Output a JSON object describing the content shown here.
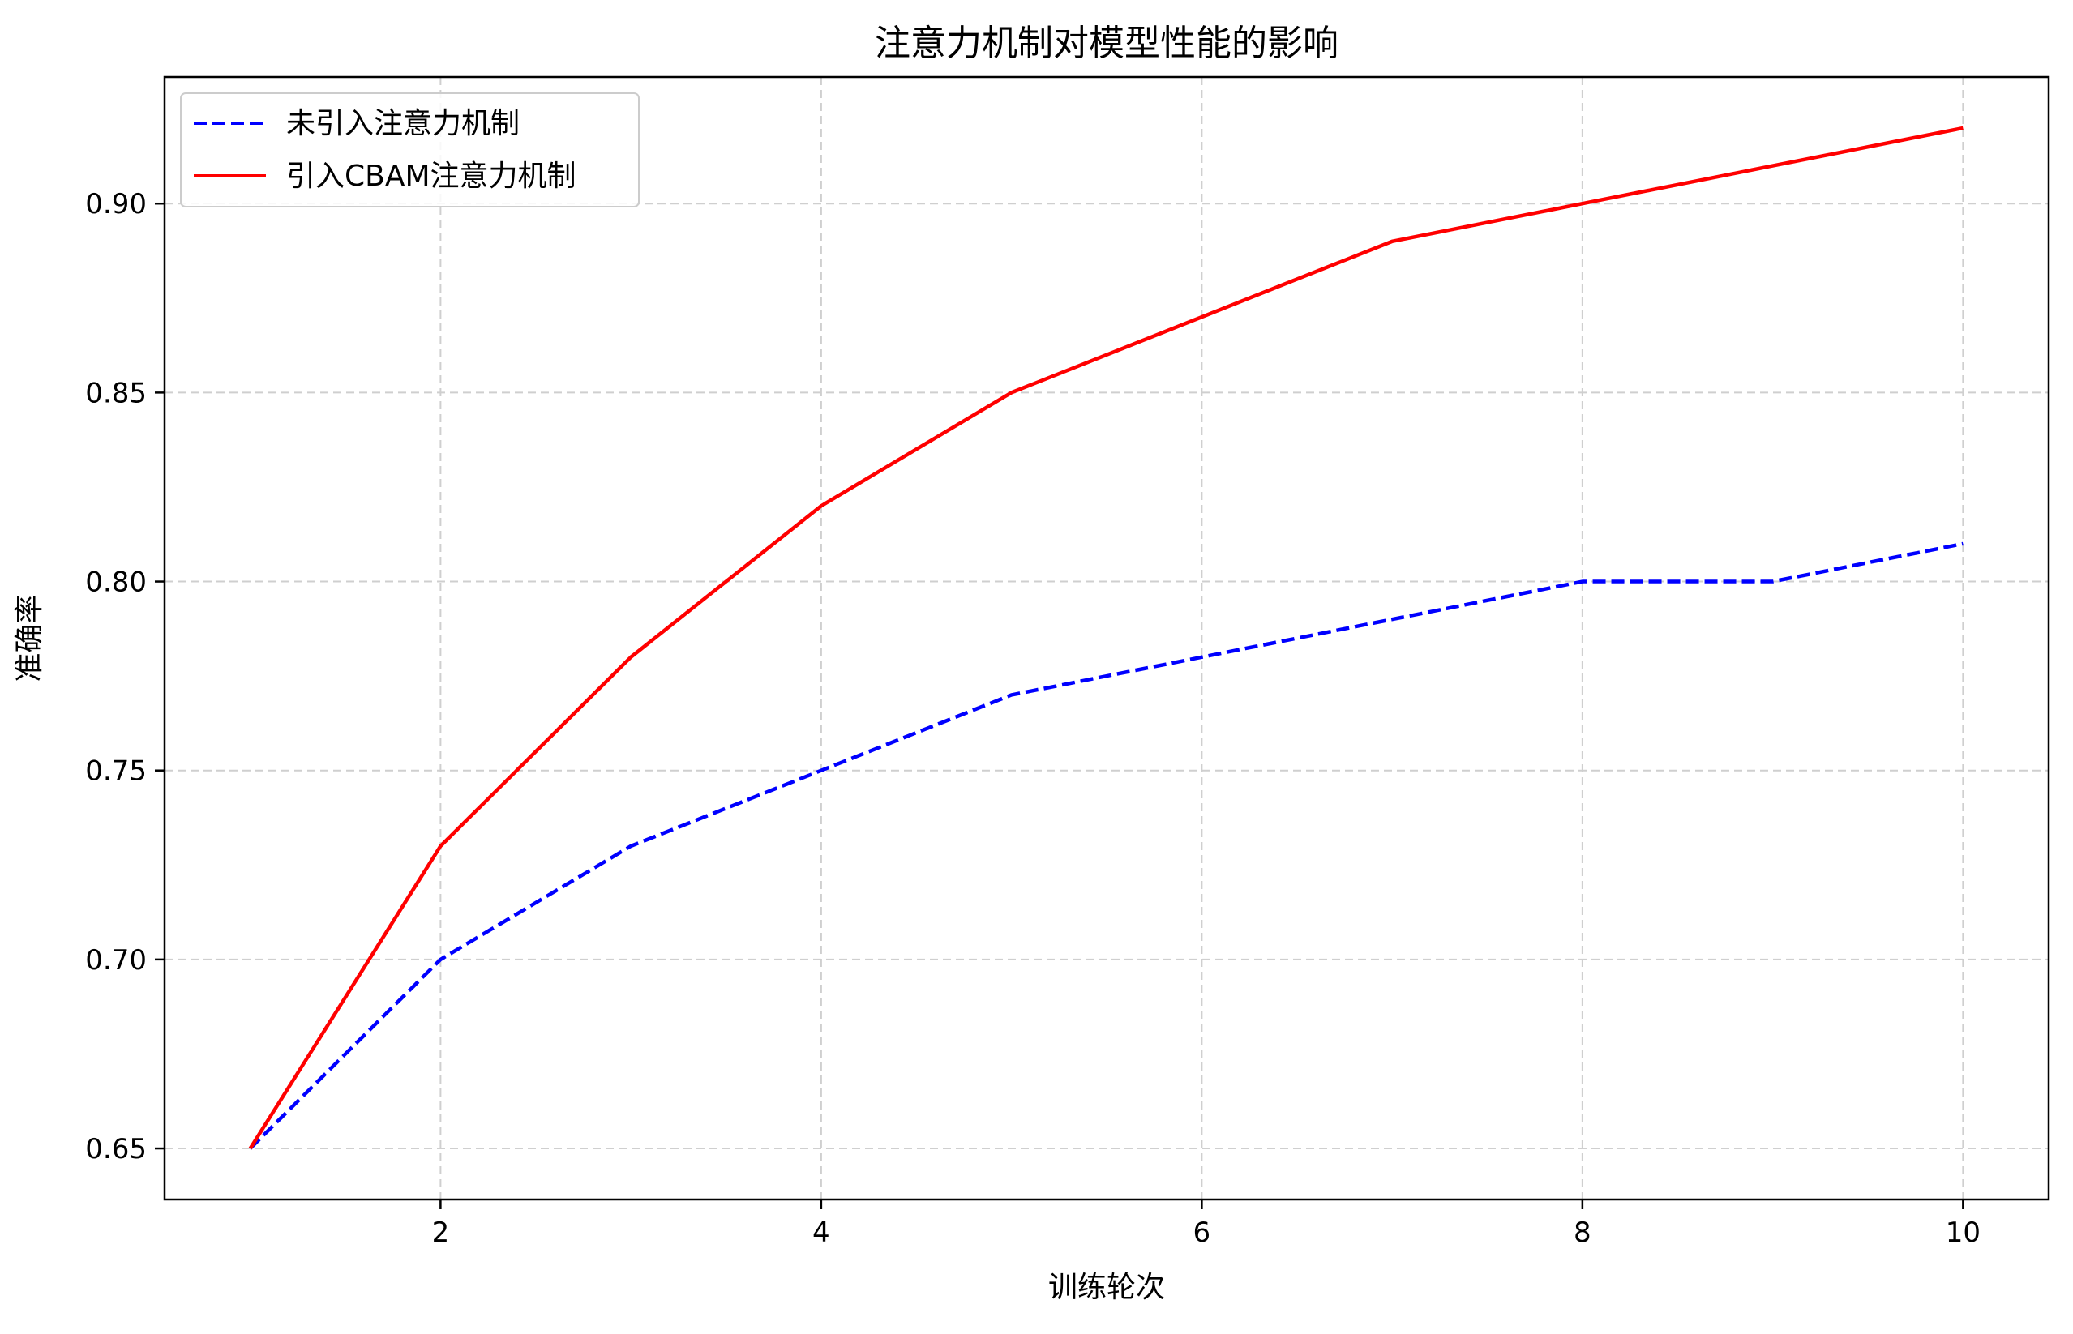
{
  "chart_data": {
    "type": "line",
    "title": "注意力机制对模型性能的影响",
    "xlabel": "训练轮次",
    "ylabel": "准确率",
    "x": [
      1,
      2,
      3,
      4,
      5,
      6,
      7,
      8,
      9,
      10
    ],
    "xlim": [
      0.55,
      10.45
    ],
    "ylim": [
      0.6365,
      0.9335
    ],
    "xticks": [
      2,
      4,
      6,
      8,
      10
    ],
    "xtick_labels": [
      "2",
      "4",
      "6",
      "8",
      "10"
    ],
    "yticks": [
      0.65,
      0.7,
      0.75,
      0.8,
      0.85,
      0.9
    ],
    "ytick_labels": [
      "0.65",
      "0.70",
      "0.75",
      "0.80",
      "0.85",
      "0.90"
    ],
    "grid": true,
    "legend_position": "top-left",
    "series": [
      {
        "name": "未引入注意力机制",
        "values": [
          0.65,
          0.7,
          0.73,
          0.75,
          0.77,
          0.78,
          0.79,
          0.8,
          0.8,
          0.81
        ],
        "color": "#0000ff",
        "style": "dashed"
      },
      {
        "name": "引入CBAM注意力机制",
        "values": [
          0.65,
          0.73,
          0.78,
          0.82,
          0.85,
          0.87,
          0.89,
          0.9,
          0.91,
          0.92
        ],
        "color": "#ff0000",
        "style": "solid"
      }
    ]
  }
}
